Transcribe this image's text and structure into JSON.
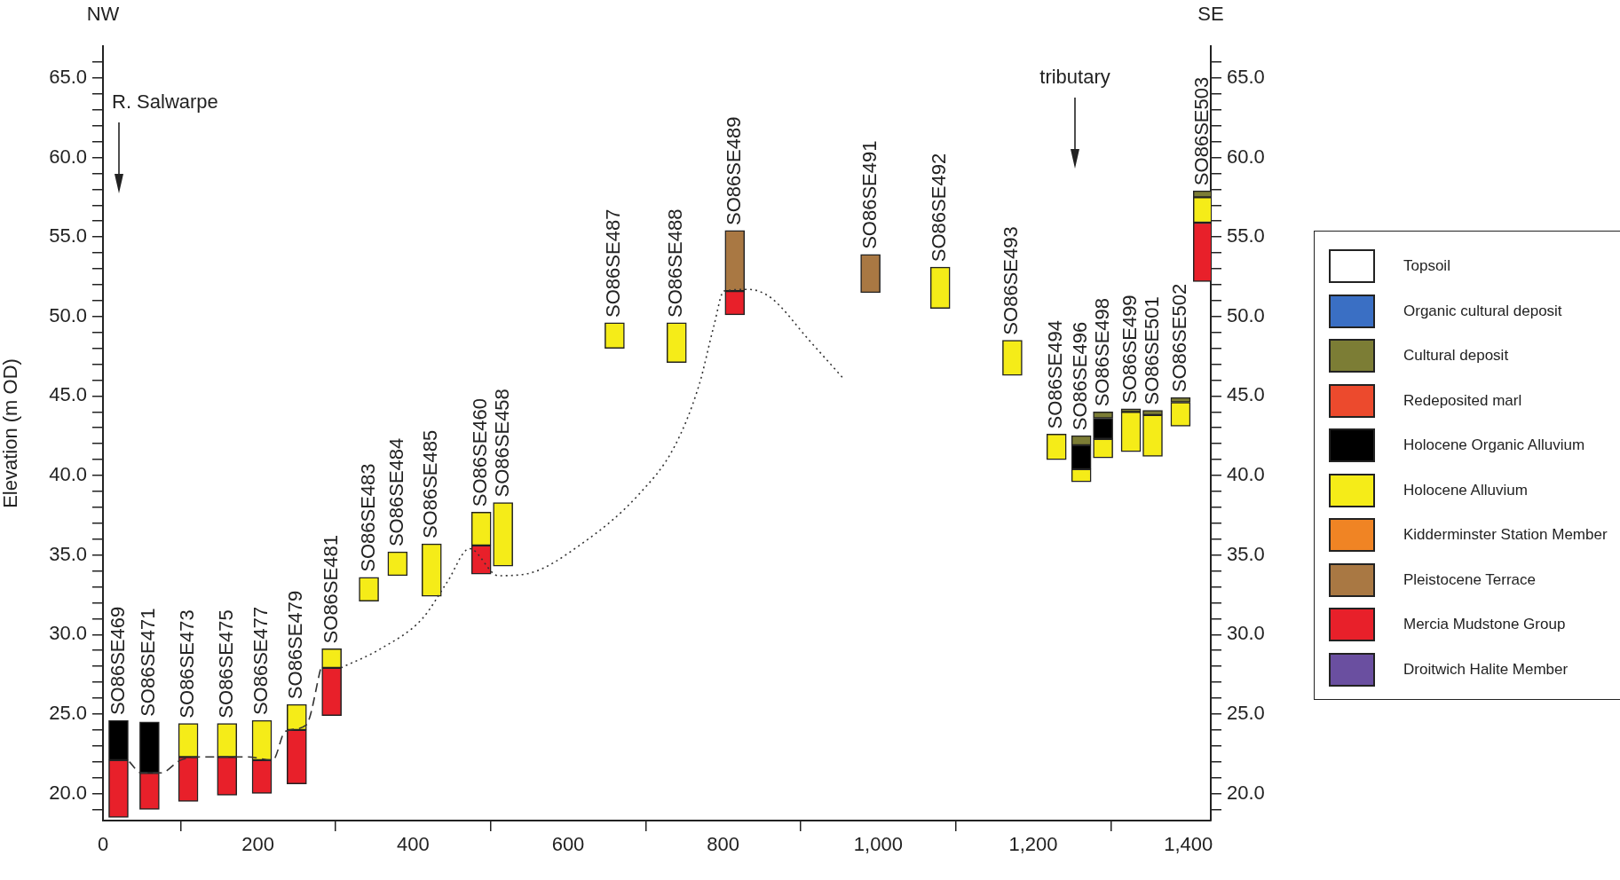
{
  "chart_data": {
    "type": "bar",
    "ylabel": "Elevation (m OD)",
    "x": [
      20,
      60,
      110,
      160,
      205,
      250,
      295,
      343,
      380,
      424,
      488,
      516,
      660,
      740,
      815,
      990,
      1080,
      1173,
      1230,
      1262,
      1290,
      1326,
      1354,
      1390,
      1419
    ],
    "series": [
      {
        "name": "Droitwich Halite Member",
        "color": "#6a4fa0",
        "values": [
          null,
          null,
          null,
          null,
          null,
          null,
          null,
          null,
          null,
          null,
          null,
          null,
          null,
          null,
          null,
          null,
          null,
          null,
          null,
          null,
          null,
          null,
          null,
          null,
          null
        ]
      },
      {
        "name": "Mercia Mudstone Group",
        "color": "#e8202a",
        "base": [
          18.5,
          19.0,
          19.5,
          19.9,
          20.0,
          20.6,
          24.9,
          null,
          null,
          null,
          33.8,
          null,
          null,
          null,
          50.1,
          null,
          null,
          null,
          null,
          null,
          null,
          null,
          null,
          null,
          52.2
        ],
        "values": [
          3.6,
          2.3,
          2.8,
          2.4,
          2.1,
          3.4,
          3.0,
          null,
          null,
          null,
          1.8,
          null,
          null,
          null,
          1.5,
          null,
          null,
          null,
          null,
          null,
          null,
          null,
          null,
          null,
          3.7
        ]
      },
      {
        "name": "Pleistocene Terrace",
        "color": "#a97843",
        "base": [
          null,
          null,
          null,
          null,
          null,
          null,
          null,
          null,
          null,
          null,
          null,
          null,
          null,
          null,
          51.6,
          51.5,
          null,
          null,
          null,
          null,
          null,
          null,
          null,
          null,
          null
        ],
        "values": [
          null,
          null,
          null,
          null,
          null,
          null,
          null,
          null,
          null,
          null,
          null,
          null,
          null,
          null,
          3.8,
          2.4,
          null,
          null,
          null,
          null,
          null,
          null,
          null,
          null,
          null
        ]
      },
      {
        "name": "Kidderminster Station Member",
        "color": "#f08424",
        "values": [
          null,
          null,
          null,
          null,
          null,
          null,
          null,
          null,
          null,
          null,
          null,
          null,
          null,
          null,
          null,
          null,
          null,
          null,
          null,
          null,
          null,
          null,
          null,
          null,
          null
        ]
      },
      {
        "name": "Holocene Alluvium",
        "color": "#f5ec18",
        "base": [
          null,
          null,
          22.3,
          22.3,
          22.1,
          24.0,
          27.9,
          32.1,
          33.7,
          32.4,
          35.6,
          34.3,
          48.0,
          47.1,
          null,
          null,
          50.5,
          46.3,
          41.0,
          39.6,
          41.1,
          41.5,
          41.2,
          43.1,
          55.9
        ],
        "values": [
          null,
          null,
          2.1,
          2.1,
          2.5,
          1.6,
          1.2,
          1.5,
          1.5,
          3.3,
          2.1,
          4.0,
          1.6,
          2.5,
          null,
          null,
          2.6,
          2.2,
          1.6,
          0.8,
          1.2,
          2.5,
          2.6,
          1.5,
          1.6
        ]
      },
      {
        "name": "Holocene Organic Alluvium",
        "color": "#000000",
        "base": [
          22.1,
          21.3,
          null,
          null,
          null,
          null,
          null,
          null,
          null,
          null,
          null,
          null,
          null,
          null,
          null,
          null,
          null,
          null,
          null,
          40.4,
          42.3,
          null,
          null,
          null,
          null
        ],
        "values": [
          2.5,
          3.2,
          null,
          null,
          null,
          null,
          null,
          null,
          null,
          null,
          null,
          null,
          null,
          null,
          null,
          null,
          null,
          null,
          null,
          1.5,
          1.3,
          null,
          null,
          null,
          null
        ]
      },
      {
        "name": "Redeposited marl",
        "color": "#ec4a2d",
        "values": [
          null,
          null,
          null,
          null,
          null,
          null,
          null,
          null,
          null,
          null,
          null,
          null,
          null,
          null,
          null,
          null,
          null,
          null,
          null,
          null,
          null,
          null,
          null,
          null,
          null
        ]
      },
      {
        "name": "Cultural deposit",
        "color": "#7c7d35",
        "base": [
          null,
          null,
          null,
          null,
          null,
          null,
          null,
          null,
          null,
          null,
          null,
          null,
          null,
          null,
          null,
          null,
          null,
          null,
          null,
          41.9,
          43.6,
          44.0,
          43.8,
          44.6,
          57.5
        ],
        "values": [
          null,
          null,
          null,
          null,
          null,
          null,
          null,
          null,
          null,
          null,
          null,
          null,
          null,
          null,
          null,
          null,
          null,
          null,
          null,
          0.6,
          0.4,
          0.2,
          0.3,
          0.3,
          0.4
        ]
      },
      {
        "name": "Organic cultural deposit",
        "color": "#3a6fc4",
        "values": [
          null,
          null,
          null,
          null,
          null,
          null,
          null,
          null,
          null,
          null,
          null,
          null,
          null,
          null,
          null,
          null,
          null,
          null,
          null,
          null,
          null,
          null,
          null,
          null,
          null
        ]
      },
      {
        "name": "Topsoil",
        "color": "#ffffff",
        "values": [
          null,
          null,
          null,
          null,
          null,
          null,
          null,
          null,
          null,
          null,
          null,
          null,
          null,
          null,
          null,
          null,
          null,
          null,
          null,
          null,
          null,
          null,
          null,
          null,
          null
        ]
      },
      {
        "type": "line",
        "color": "#333333",
        "line_style": "dashed",
        "x": [
          34,
          49,
          75,
          100,
          125,
          187,
          219,
          235,
          262,
          281
        ],
        "values": [
          22.0,
          21.3,
          21.3,
          22.1,
          22.3,
          22.3,
          22.1,
          23.9,
          24.3,
          27.9
        ]
      },
      {
        "type": "line",
        "color": "#333333",
        "line_style": "dotted",
        "x": [
          307,
          358,
          412,
          444,
          473,
          510,
          545,
          623,
          691,
          737,
          769,
          788,
          801,
          833,
          861,
          911,
          955
        ],
        "values": [
          27.9,
          29.1,
          31.0,
          33.3,
          35.4,
          33.7,
          33.8,
          35.9,
          38.8,
          41.8,
          45.7,
          49.4,
          51.6,
          51.7,
          51.2,
          48.5,
          46.1
        ]
      }
    ],
    "xlim": [
      0,
      1429
    ],
    "xticks": [
      0,
      200,
      400,
      600,
      800,
      {
        "value": 1000,
        "label": "1,000"
      },
      {
        "value": 1200,
        "label": "1,200"
      },
      {
        "value": 1400,
        "label": "1,400"
      }
    ],
    "ylim": [
      18.3,
      67
    ],
    "yticks": [
      {
        "value": 19,
        "label": null
      },
      {
        "value": 20,
        "label": "20.0"
      },
      {
        "value": 21,
        "label": null
      },
      {
        "value": 22,
        "label": null
      },
      {
        "value": 23,
        "label": null
      },
      {
        "value": 24,
        "label": null
      },
      {
        "value": 25,
        "label": "25.0"
      },
      {
        "value": 26,
        "label": null
      },
      {
        "value": 27,
        "label": null
      },
      {
        "value": 28,
        "label": null
      },
      {
        "value": 29,
        "label": null
      },
      {
        "value": 30,
        "label": "30.0"
      },
      {
        "value": 31,
        "label": null
      },
      {
        "value": 32,
        "label": null
      },
      {
        "value": 33,
        "label": null
      },
      {
        "value": 34,
        "label": null
      },
      {
        "value": 35,
        "label": "35.0"
      },
      {
        "value": 36,
        "label": null
      },
      {
        "value": 37,
        "label": null
      },
      {
        "value": 38,
        "label": null
      },
      {
        "value": 39,
        "label": null
      },
      {
        "value": 40,
        "label": "40.0"
      },
      {
        "value": 41,
        "label": null
      },
      {
        "value": 42,
        "label": null
      },
      {
        "value": 43,
        "label": null
      },
      {
        "value": 44,
        "label": null
      },
      {
        "value": 45,
        "label": "45.0"
      },
      {
        "value": 46,
        "label": null
      },
      {
        "value": 47,
        "label": null
      },
      {
        "value": 48,
        "label": null
      },
      {
        "value": 49,
        "label": null
      },
      {
        "value": 50,
        "label": "50.0"
      },
      {
        "value": 51,
        "label": null
      },
      {
        "value": 52,
        "label": null
      },
      {
        "value": 53,
        "label": null
      },
      {
        "value": 54,
        "label": null
      },
      {
        "value": 55,
        "label": "55.0"
      },
      {
        "value": 56,
        "label": null
      },
      {
        "value": 57,
        "label": null
      },
      {
        "value": 58,
        "label": null
      },
      {
        "value": 59,
        "label": null
      },
      {
        "value": 60,
        "label": "60.0"
      },
      {
        "value": 61,
        "label": null
      },
      {
        "value": 62,
        "label": null
      },
      {
        "value": 63,
        "label": null
      },
      {
        "value": 64,
        "label": null
      },
      {
        "value": 65,
        "label": "65.0"
      },
      {
        "value": 66,
        "label": null
      }
    ],
    "y2lim": [
      18.3,
      67
    ],
    "y2ticks": [
      {
        "value": 19,
        "label": null
      },
      {
        "value": 20,
        "label": "20.0"
      },
      {
        "value": 21,
        "label": null
      },
      {
        "value": 22,
        "label": null
      },
      {
        "value": 23,
        "label": null
      },
      {
        "value": 24,
        "label": null
      },
      {
        "value": 25,
        "label": "25.0"
      },
      {
        "value": 26,
        "label": null
      },
      {
        "value": 27,
        "label": null
      },
      {
        "value": 28,
        "label": null
      },
      {
        "value": 29,
        "label": null
      },
      {
        "value": 30,
        "label": "30.0"
      },
      {
        "value": 31,
        "label": null
      },
      {
        "value": 32,
        "label": null
      },
      {
        "value": 33,
        "label": null
      },
      {
        "value": 34,
        "label": null
      },
      {
        "value": 35,
        "label": "35.0"
      },
      {
        "value": 36,
        "label": null
      },
      {
        "value": 37,
        "label": null
      },
      {
        "value": 38,
        "label": null
      },
      {
        "value": 39,
        "label": null
      },
      {
        "value": 40,
        "label": "40.0"
      },
      {
        "value": 41,
        "label": null
      },
      {
        "value": 42,
        "label": null
      },
      {
        "value": 43,
        "label": null
      },
      {
        "value": 44,
        "label": null
      },
      {
        "value": 45,
        "label": "45.0"
      },
      {
        "value": 46,
        "label": null
      },
      {
        "value": 47,
        "label": null
      },
      {
        "value": 48,
        "label": null
      },
      {
        "value": 49,
        "label": null
      },
      {
        "value": 50,
        "label": "50.0"
      },
      {
        "value": 51,
        "label": null
      },
      {
        "value": 52,
        "label": null
      },
      {
        "value": 53,
        "label": null
      },
      {
        "value": 54,
        "label": null
      },
      {
        "value": 55,
        "label": "55.0"
      },
      {
        "value": 56,
        "label": null
      },
      {
        "value": 57,
        "label": null
      },
      {
        "value": 58,
        "label": null
      },
      {
        "value": 59,
        "label": null
      },
      {
        "value": 60,
        "label": "60.0"
      },
      {
        "value": 61,
        "label": null
      },
      {
        "value": 62,
        "label": null
      },
      {
        "value": 63,
        "label": null
      },
      {
        "value": 64,
        "label": null
      },
      {
        "value": 65,
        "label": "65.0"
      },
      {
        "value": 66,
        "label": null
      }
    ],
    "grid": false,
    "legend": "right",
    "annotations": [
      "NW",
      "SE",
      "R. Salwarpe",
      "tributary",
      {
        "text": "SO86SE469",
        "x": 20,
        "y": 24.6
      },
      {
        "text": "SO86SE471",
        "x": 60,
        "y": 24.5
      },
      {
        "text": "SO86SE473",
        "x": 110,
        "y": 24.4
      },
      {
        "text": "SO86SE475",
        "x": 160,
        "y": 24.4
      },
      {
        "text": "SO86SE477",
        "x": 205,
        "y": 24.6
      },
      {
        "text": "SO86SE479",
        "x": 250,
        "y": 25.6
      },
      {
        "text": "SO86SE481",
        "x": 295,
        "y": 29.1
      },
      {
        "text": "SO86SE483",
        "x": 343,
        "y": 33.6
      },
      {
        "text": "SO86SE484",
        "x": 380,
        "y": 35.2
      },
      {
        "text": "SO86SE485",
        "x": 424,
        "y": 35.7
      },
      {
        "text": "SO86SE460",
        "x": 488,
        "y": 37.7
      },
      {
        "text": "SO86SE458",
        "x": 516,
        "y": 38.3
      },
      {
        "text": "SO86SE487",
        "x": 660,
        "y": 49.6
      },
      {
        "text": "SO86SE488",
        "x": 740,
        "y": 49.6
      },
      {
        "text": "SO86SE489",
        "x": 815,
        "y": 55.4
      },
      {
        "text": "SO86SE491",
        "x": 990,
        "y": 53.9
      },
      {
        "text": "SO86SE492",
        "x": 1080,
        "y": 53.1
      },
      {
        "text": "SO86SE493",
        "x": 1173,
        "y": 48.5
      },
      {
        "text": "SO86SE494",
        "x": 1230,
        "y": 42.6
      },
      {
        "text": "SO86SE496",
        "x": 1262,
        "y": 42.5
      },
      {
        "text": "SO86SE498",
        "x": 1290,
        "y": 44.0
      },
      {
        "text": "SO86SE499",
        "x": 1326,
        "y": 44.2
      },
      {
        "text": "SO86SE501",
        "x": 1354,
        "y": 44.1
      },
      {
        "text": "SO86SE502",
        "x": 1390,
        "y": 44.9
      },
      {
        "text": "SO86SE503",
        "x": 1419,
        "y": 57.9
      }
    ]
  }
}
